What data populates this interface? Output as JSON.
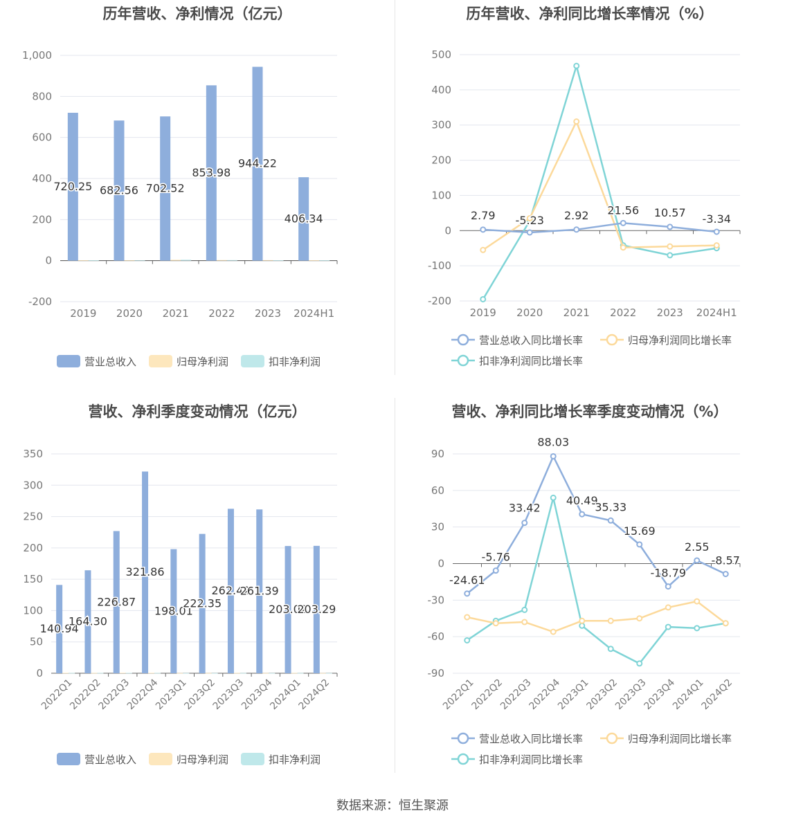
{
  "footer": "数据来源：恒生聚源",
  "colors": {
    "revenue": "#8eaedc",
    "net_profit": "#fde7bd",
    "deducted": "#bfe8ea",
    "rev_line": "#8eaedc",
    "np_line": "#fcd99a",
    "dd_line": "#7fd4d6"
  },
  "charts": [
    {
      "title": "历年营收、净利情况（亿元）",
      "chart_data": {
        "type": "bar",
        "categories": [
          "2019",
          "2020",
          "2021",
          "2022",
          "2023",
          "2024H1"
        ],
        "ylim": [
          -200,
          1000
        ],
        "yticks": [
          "-200",
          "0",
          "200",
          "400",
          "600",
          "800",
          "1,000"
        ],
        "series": [
          {
            "name": "营业总收入",
            "values": [
              720.25,
              682.56,
              702.52,
              853.98,
              944.22,
              406.34
            ],
            "labels": [
              "720.25",
              "682.56",
              "702.52",
              "853.98",
              "944.22",
              "406.34"
            ]
          },
          {
            "name": "归母净利润",
            "values": [
              2.1,
              1.2,
              4.2,
              3.0,
              2.6,
              1.8
            ]
          },
          {
            "name": "扣非净利润",
            "values": [
              1.8,
              1.0,
              4.5,
              2.8,
              2.2,
              1.5
            ]
          }
        ]
      }
    },
    {
      "title": "历年营收、净利同比增长率情况（%）",
      "chart_data": {
        "type": "line",
        "categories": [
          "2019",
          "2020",
          "2021",
          "2022",
          "2023",
          "2024H1"
        ],
        "ylim": [
          -200,
          500
        ],
        "yticks": [
          "-200",
          "-100",
          "0",
          "100",
          "200",
          "300",
          "400",
          "500"
        ],
        "series": [
          {
            "name": "营业总收入同比增长率",
            "values": [
              2.79,
              -5.23,
              2.92,
              21.56,
              10.57,
              -3.34
            ],
            "labels": [
              "2.79",
              "-5.23",
              "2.92",
              "21.56",
              "10.57",
              "-3.34"
            ]
          },
          {
            "name": "归母净利润同比增长率",
            "values": [
              -55,
              35,
              310,
              -48,
              -45,
              -42
            ]
          },
          {
            "name": "扣非净利润同比增长率",
            "values": [
              -195,
              28,
              468,
              -42,
              -70,
              -50
            ]
          }
        ]
      }
    },
    {
      "title": "营收、净利季度变动情况（亿元）",
      "chart_data": {
        "type": "bar",
        "categories": [
          "2022Q1",
          "2022Q2",
          "2022Q3",
          "2022Q4",
          "2023Q1",
          "2023Q2",
          "2023Q3",
          "2023Q4",
          "2024Q1",
          "2024Q2"
        ],
        "ylim": [
          0,
          350
        ],
        "yticks": [
          "0",
          "50",
          "100",
          "150",
          "200",
          "250",
          "300",
          "350"
        ],
        "series": [
          {
            "name": "营业总收入",
            "values": [
              140.94,
              164.3,
              226.87,
              321.86,
              198.01,
              222.35,
              262.42,
              261.39,
              203.02,
              203.29
            ],
            "labels": [
              "140.94",
              "164.30",
              "226.87",
              "321.86",
              "198.01",
              "222.35",
              "262.42",
              "261.39",
              "203.02",
              "203.29"
            ]
          },
          {
            "name": "归母净利润",
            "values": [
              0.6,
              0.5,
              0.7,
              0.6,
              0.4,
              0.4,
              0.5,
              0.4,
              0.5,
              0.4
            ]
          },
          {
            "name": "扣非净利润",
            "values": [
              0.5,
              0.5,
              0.6,
              0.5,
              0.3,
              0.3,
              0.4,
              0.3,
              0.4,
              0.3
            ]
          }
        ]
      }
    },
    {
      "title": "营收、净利同比增长率季度变动情况（%）",
      "chart_data": {
        "type": "line",
        "categories": [
          "2022Q1",
          "2022Q2",
          "2022Q3",
          "2022Q4",
          "2023Q1",
          "2023Q2",
          "2023Q3",
          "2023Q4",
          "2024Q1",
          "2024Q2"
        ],
        "ylim": [
          -90,
          90
        ],
        "yticks": [
          "-90",
          "-60",
          "-30",
          "0",
          "30",
          "60",
          "90"
        ],
        "series": [
          {
            "name": "营业总收入同比增长率",
            "values": [
              -24.61,
              -5.76,
              33.42,
              88.03,
              40.49,
              35.33,
              15.69,
              -18.79,
              2.55,
              -8.57
            ],
            "labels": [
              "-24.61",
              "-5.76",
              "33.42",
              "88.03",
              "40.49",
              "35.33",
              "15.69",
              "-18.79",
              "2.55",
              "-8.57"
            ]
          },
          {
            "name": "归母净利润同比增长率",
            "values": [
              -44,
              -49,
              -48,
              -56,
              -47,
              -47,
              -45,
              -36,
              -31,
              -49
            ]
          },
          {
            "name": "扣非净利润同比增长率",
            "values": [
              -63,
              -47,
              -38,
              54,
              -51,
              -70,
              -82,
              -52,
              -53,
              -49
            ]
          }
        ]
      }
    }
  ]
}
